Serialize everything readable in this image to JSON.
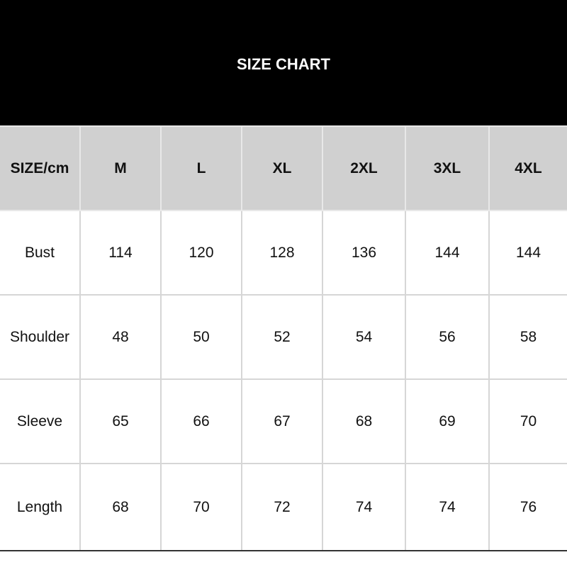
{
  "title": "SIZE CHART",
  "headers": [
    "SIZE/cm",
    "M",
    "L",
    "XL",
    "2XL",
    "3XL",
    "4XL"
  ],
  "rows": [
    {
      "label": "Bust",
      "values": [
        "114",
        "120",
        "128",
        "136",
        "144",
        "144"
      ]
    },
    {
      "label": "Shoulder",
      "values": [
        "48",
        "50",
        "52",
        "54",
        "56",
        "58"
      ]
    },
    {
      "label": "Sleeve",
      "values": [
        "65",
        "66",
        "67",
        "68",
        "69",
        "70"
      ]
    },
    {
      "label": "Length",
      "values": [
        "68",
        "70",
        "72",
        "74",
        "74",
        "76"
      ]
    }
  ],
  "colors": {
    "banner": "#000000",
    "header_row": "#d0d0d0",
    "grid": "#d6d6d6"
  }
}
